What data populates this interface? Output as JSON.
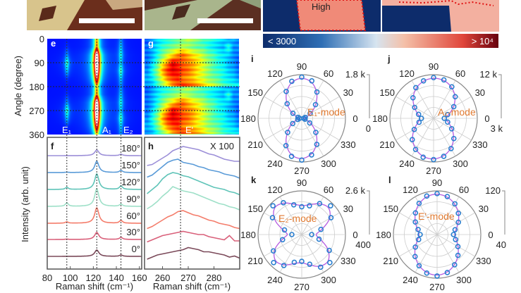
{
  "figure": {
    "top_maps": {
      "region_label": "High"
    },
    "colorbar": {
      "min_label": "< 3000",
      "max_label": "> 10⁴",
      "colors": [
        "#0d2c6b",
        "#2f6fb5",
        "#d6e4f0",
        "#f4c0a8",
        "#e0453a",
        "#67000d"
      ]
    },
    "panel_labels": {
      "e": "e",
      "f": "f",
      "g": "g",
      "h": "h",
      "i": "i",
      "j": "j",
      "k": "k",
      "l": "l"
    }
  },
  "chart_data": [
    {
      "panel": "e",
      "type": "heatmap",
      "ylabel": "Angle (degree)",
      "yticks": [
        "0",
        "90",
        "180",
        "270",
        "360"
      ],
      "ylim": [
        0,
        360
      ],
      "xlim": [
        80,
        162
      ],
      "colormap": "jet",
      "peak_labels": [
        "E₁",
        "A₁",
        "E₂"
      ],
      "peak_positions": [
        97,
        123,
        144
      ],
      "gridlines_y": [
        90,
        180,
        270
      ]
    },
    {
      "panel": "g",
      "type": "heatmap",
      "xlim": [
        253,
        290
      ],
      "ylim": [
        0,
        360
      ],
      "colormap": "jet",
      "peak_labels": [
        "E'"
      ],
      "peak_positions": [
        267
      ],
      "gridlines_y": [
        90,
        180,
        270
      ]
    },
    {
      "panel": "f",
      "type": "line",
      "xlabel": "Raman shift (cm⁻¹)",
      "ylabel": "Intensity (arb. unit)",
      "xlim": [
        80,
        162
      ],
      "xticks": [
        "80",
        "100",
        "120",
        "140",
        "160"
      ],
      "dashed_x": [
        97,
        123,
        144
      ],
      "peaks": {
        "positions": [
          97,
          123,
          144
        ],
        "widths": [
          1.5,
          2.2,
          1.6
        ]
      },
      "series": [
        {
          "name": "180°",
          "color": "#9c8fd8",
          "amplitudes": [
            0,
            8,
            2
          ]
        },
        {
          "name": "150°",
          "color": "#5a9bd8",
          "amplitudes": [
            0.5,
            16,
            3
          ]
        },
        {
          "name": "120°",
          "color": "#5fc4b8",
          "amplitudes": [
            3,
            22,
            5
          ]
        },
        {
          "name": "90°",
          "color": "#9ee0c8",
          "amplitudes": [
            5,
            25,
            3
          ]
        },
        {
          "name": "60°",
          "color": "#f47c6a",
          "amplitudes": [
            2,
            22,
            4
          ]
        },
        {
          "name": "30°",
          "color": "#d9607a",
          "amplitudes": [
            0.5,
            10,
            3
          ]
        },
        {
          "name": "0°",
          "color": "#7b4a5a",
          "amplitudes": [
            0,
            9,
            2
          ]
        }
      ]
    },
    {
      "panel": "h",
      "type": "line",
      "annotation": "X 100",
      "xlabel": "Raman shift (cm⁻¹)",
      "xlim": [
        253,
        290
      ],
      "xticks": [
        "260",
        "270",
        "280"
      ],
      "dashed_x": [
        267
      ],
      "x": [
        254,
        256,
        258,
        260,
        262,
        264,
        266,
        268,
        270,
        272,
        274,
        276,
        278,
        280,
        282,
        284,
        286,
        288,
        290
      ],
      "series": [
        {
          "name": "180°",
          "color": "#9c8fd8",
          "values": [
            2,
            3,
            6,
            9,
            12,
            16,
            18,
            20,
            19,
            18,
            17,
            15,
            13,
            12,
            10,
            8,
            7,
            6,
            6
          ]
        },
        {
          "name": "150°",
          "color": "#5a9bd8",
          "values": [
            3,
            5,
            9,
            13,
            17,
            19,
            20,
            17,
            16,
            15,
            13,
            12,
            10,
            9,
            8,
            6,
            5,
            4,
            2
          ]
        },
        {
          "name": "120°",
          "color": "#5fc4b8",
          "values": [
            2,
            6,
            10,
            16,
            20,
            22,
            21,
            19,
            18,
            16,
            14,
            12,
            10,
            8,
            7,
            6,
            4,
            3,
            1
          ]
        },
        {
          "name": "90°",
          "color": "#9ee0c8",
          "values": [
            1,
            4,
            8,
            13,
            17,
            22,
            20,
            18,
            17,
            16,
            14,
            12,
            10,
            8,
            6,
            5,
            3,
            2,
            0
          ]
        },
        {
          "name": "60°",
          "color": "#f47c6a",
          "values": [
            1,
            3,
            6,
            9,
            12,
            14,
            17,
            18,
            16,
            14,
            13,
            11,
            9,
            8,
            6,
            5,
            4,
            2,
            1
          ]
        },
        {
          "name": "30°",
          "color": "#d9607a",
          "values": [
            1,
            3,
            5,
            7,
            8,
            9,
            10,
            11,
            10,
            9,
            8,
            8,
            6,
            5,
            4,
            3,
            7,
            2,
            2
          ]
        },
        {
          "name": "0°",
          "color": "#7b4a5a",
          "values": [
            0,
            2,
            4,
            5,
            6,
            7,
            8,
            9,
            11,
            10,
            9,
            7,
            7,
            6,
            5,
            4,
            2,
            3,
            1
          ]
        }
      ]
    },
    {
      "panel": "i",
      "type": "polar",
      "mode_label": "E₁-mode",
      "r_range": [
        0,
        1800
      ],
      "r_labels": [
        "1.8 k",
        "0"
      ],
      "angle_labels": [
        "0",
        "30",
        "60",
        "90",
        "120",
        "150",
        "180",
        "210",
        "240",
        "270",
        "300",
        "330"
      ],
      "angles": [
        0,
        15,
        30,
        45,
        60,
        75,
        90,
        105,
        120,
        135,
        150,
        165,
        180,
        195,
        210,
        225,
        240,
        255,
        270,
        285,
        300,
        315,
        330,
        345
      ],
      "values": [
        80,
        150,
        400,
        800,
        1250,
        1600,
        1700,
        1580,
        1280,
        850,
        420,
        160,
        90,
        170,
        430,
        820,
        1300,
        1620,
        1720,
        1560,
        1240,
        820,
        380,
        140
      ]
    },
    {
      "panel": "j",
      "type": "polar",
      "mode_label": "A₁-mode",
      "r_range": [
        3000,
        12000
      ],
      "r_labels": [
        "12 k",
        "3 k"
      ],
      "angle_labels": [
        "0",
        "30",
        "60",
        "90",
        "120",
        "150",
        "180",
        "210",
        "240",
        "270",
        "300",
        "330"
      ],
      "angles": [
        0,
        15,
        30,
        45,
        60,
        75,
        90,
        105,
        120,
        135,
        150,
        165,
        180,
        195,
        210,
        225,
        240,
        255,
        270,
        285,
        300,
        315,
        330,
        345
      ],
      "values": [
        5200,
        6000,
        7800,
        9300,
        10500,
        11200,
        11400,
        11000,
        10300,
        9000,
        7500,
        6200,
        5500,
        6100,
        7600,
        9200,
        10400,
        11300,
        11500,
        11100,
        10200,
        8900,
        7300,
        6000
      ]
    },
    {
      "panel": "k",
      "type": "polar",
      "mode_label": "E₂-mode",
      "r_range": [
        400,
        2600
      ],
      "r_labels": [
        "2.6 k",
        "400"
      ],
      "angle_labels": [
        "0",
        "30",
        "60",
        "90",
        "120",
        "150",
        "180",
        "210",
        "240",
        "270",
        "300",
        "330"
      ],
      "angles": [
        0,
        15,
        30,
        45,
        60,
        75,
        90,
        105,
        120,
        135,
        150,
        165,
        180,
        195,
        210,
        225,
        240,
        255,
        270,
        285,
        300,
        315,
        330,
        345
      ],
      "values": [
        900,
        1400,
        2100,
        2450,
        2200,
        1900,
        1800,
        1950,
        2250,
        2450,
        2100,
        1300,
        900,
        1400,
        2050,
        2400,
        2200,
        1850,
        1750,
        1950,
        2300,
        2400,
        2000,
        1300
      ]
    },
    {
      "panel": "l",
      "type": "polar",
      "mode_label": "E'-mode",
      "r_range": [
        40,
        120
      ],
      "r_labels": [
        "120",
        "40"
      ],
      "angle_labels": [
        "0",
        "30",
        "60",
        "90",
        "120",
        "150",
        "180",
        "210",
        "240",
        "270",
        "300",
        "330"
      ],
      "angles": [
        0,
        15,
        30,
        45,
        60,
        75,
        90,
        105,
        120,
        135,
        150,
        165,
        180,
        195,
        210,
        225,
        240,
        255,
        270,
        285,
        300,
        315,
        330,
        345
      ],
      "values": [
        70,
        74,
        85,
        95,
        105,
        112,
        115,
        113,
        106,
        96,
        86,
        76,
        71,
        75,
        86,
        97,
        106,
        113,
        116,
        112,
        104,
        94,
        84,
        75
      ]
    }
  ]
}
